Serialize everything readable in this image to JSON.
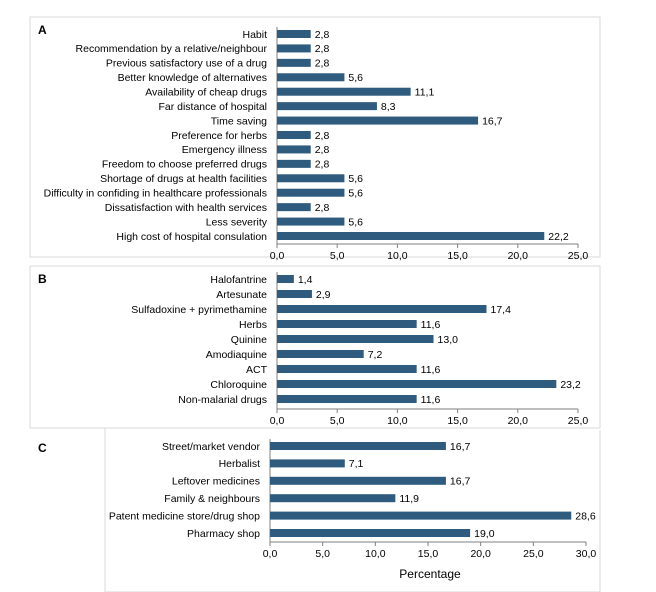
{
  "chart_data": [
    {
      "type": "bar",
      "orientation": "horizontal",
      "panel": "A",
      "categories": [
        "Habit",
        "Recommendation by a relative/neighbour",
        "Previous satisfactory use of a drug",
        "Better knowledge of alternatives",
        "Availability of cheap drugs",
        "Far distance of hospital",
        "Time saving",
        "Preference for herbs",
        "Emergency illness",
        "Freedom to choose preferred drugs",
        "Shortage of drugs at health facilities",
        "Difficulty in confiding in healthcare professionals",
        "Dissatisfaction with health services",
        "Less severity",
        "High cost of hospital consulation"
      ],
      "values": [
        2.8,
        2.8,
        2.8,
        5.6,
        11.1,
        8.3,
        16.7,
        2.8,
        2.8,
        2.8,
        5.6,
        5.6,
        2.8,
        5.6,
        22.2
      ],
      "value_labels": [
        "2,8",
        "2,8",
        "2,8",
        "5,6",
        "11,1",
        "8,3",
        "16,7",
        "2,8",
        "2,8",
        "2,8",
        "5,6",
        "5,6",
        "2,8",
        "5,6",
        "22,2"
      ],
      "xlim": [
        0,
        25
      ],
      "ticks": [
        "0,0",
        "5,0",
        "10,0",
        "15,0",
        "20,0",
        "25,0"
      ],
      "xlabel": ""
    },
    {
      "type": "bar",
      "orientation": "horizontal",
      "panel": "B",
      "categories": [
        "Halofantrine",
        "Artesunate",
        "Sulfadoxine + pyrimethamine",
        "Herbs",
        "Quinine",
        "Amodiaquine",
        "ACT",
        "Chloroquine",
        "Non-malarial drugs"
      ],
      "values": [
        1.4,
        2.9,
        17.4,
        11.6,
        13.0,
        7.2,
        11.6,
        23.2,
        11.6
      ],
      "value_labels": [
        "1,4",
        "2,9",
        "17,4",
        "11,6",
        "13,0",
        "7,2",
        "11,6",
        "23,2",
        "11,6"
      ],
      "xlim": [
        0,
        25
      ],
      "ticks": [
        "0,0",
        "5,0",
        "10,0",
        "15,0",
        "20,0",
        "25,0"
      ],
      "xlabel": ""
    },
    {
      "type": "bar",
      "orientation": "horizontal",
      "panel": "C",
      "categories": [
        "Street/market vendor",
        "Herbalist",
        "Leftover medicines",
        "Family & neighbours",
        "Patent medicine store/drug shop",
        "Pharmacy shop"
      ],
      "values": [
        16.7,
        7.1,
        16.7,
        11.9,
        28.6,
        19.0
      ],
      "value_labels": [
        "16,7",
        "7,1",
        "16,7",
        "11,9",
        "28,6",
        "19,0"
      ],
      "xlim": [
        0,
        30
      ],
      "ticks": [
        "0,0",
        "5,0",
        "10,0",
        "15,0",
        "20,0",
        "25,0",
        "30,0"
      ],
      "xlabel": "Percentage"
    }
  ],
  "colors": {
    "bar": "#2e5b7e",
    "axis": "#7f7f7f",
    "frame": "#d9d9d9"
  }
}
